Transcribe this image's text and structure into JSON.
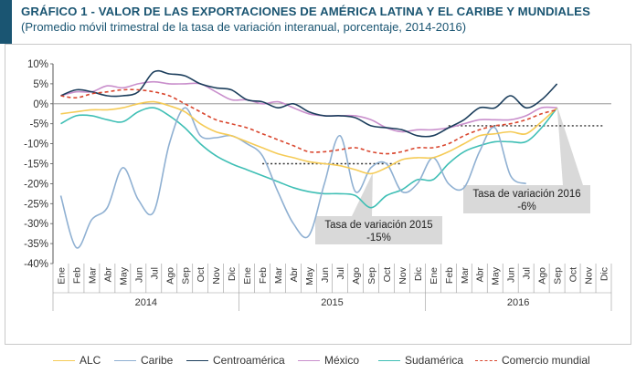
{
  "header": {
    "title": "GRÁFICO 1 - VALOR DE LAS EXPORTACIONES DE AMÉRICA LATINA Y EL CARIBE Y MUNDIALES",
    "subtitle": "(Promedio móvil trimestral de la tasa de variación interanual, porcentaje, 2014-2016)"
  },
  "chart_data": {
    "type": "line",
    "title": "GRÁFICO 1 - VALOR DE LAS EXPORTACIONES DE AMÉRICA LATINA Y EL CARIBE Y MUNDIALES",
    "ylim": [
      -40,
      10
    ],
    "yticks": [
      "10%",
      "5%",
      "0%",
      "-5%",
      "-10%",
      "-15%",
      "-20%",
      "-25%",
      "-30%",
      "-35%",
      "-40%"
    ],
    "ytick_values": [
      10,
      5,
      0,
      -5,
      -10,
      -15,
      -20,
      -25,
      -30,
      -35,
      -40
    ],
    "x": [
      "Ene",
      "Feb",
      "Mar",
      "Abr",
      "May",
      "Jun",
      "Jul",
      "Ago",
      "Sep",
      "Oct",
      "Nov",
      "Dic",
      "Ene",
      "Feb",
      "Mar",
      "Abr",
      "May",
      "Jun",
      "Jul",
      "Ago",
      "Sep",
      "Oct",
      "Nov",
      "Dic",
      "Ene",
      "Feb",
      "Mar",
      "Abr",
      "May",
      "Jun",
      "Jul",
      "Ago",
      "Sep",
      "Oct",
      "Nov",
      "Dic"
    ],
    "years": [
      "2014",
      "2015",
      "2016"
    ],
    "series": [
      {
        "name": "ALC",
        "color": "#f5cb57",
        "style": "solid",
        "values": [
          -2.5,
          -2,
          -1.5,
          -1.5,
          -1,
          0,
          0.5,
          -0.5,
          -2,
          -5,
          -7,
          -8,
          -9.5,
          -11,
          -12.5,
          -13.5,
          -14.5,
          -15,
          -15.5,
          -16.5,
          -17.5,
          -16,
          -14,
          -13.5,
          -13.5,
          -12,
          -10,
          -8,
          -7.5,
          -7,
          -7.5,
          -4.5,
          -1,
          null,
          null,
          null
        ]
      },
      {
        "name": "Caribe",
        "color": "#8fb0d2",
        "style": "solid",
        "values": [
          -23,
          -36,
          -29,
          -26,
          -16,
          -24,
          -27,
          -10,
          -1,
          -8,
          -8.5,
          -8,
          -10,
          -13,
          -22,
          -30,
          -33,
          -20,
          -8,
          -22,
          -16,
          -15,
          -22,
          -20,
          -13.5,
          -20,
          -21,
          -12,
          -6,
          -18,
          -20,
          null,
          null,
          null,
          null,
          null
        ]
      },
      {
        "name": "Centroamérica",
        "color": "#1c3e5c",
        "style": "solid",
        "values": [
          2,
          3.5,
          3,
          2,
          2,
          3,
          8,
          7.5,
          7,
          5,
          4,
          3.5,
          1,
          0.5,
          -1,
          0,
          -2,
          -3,
          -3,
          -3.5,
          -5.5,
          -6,
          -6.5,
          -8,
          -8,
          -6,
          -4,
          -1,
          -1,
          2,
          -1,
          1,
          5,
          null,
          null,
          null
        ]
      },
      {
        "name": "México",
        "color": "#c98fcc",
        "style": "solid",
        "values": [
          2,
          3,
          3,
          4.5,
          4,
          5,
          5.5,
          5,
          5,
          5,
          3,
          1,
          1,
          0,
          0.5,
          -1,
          -2.5,
          -3,
          -3,
          -3,
          -4,
          -6,
          -7,
          -6.5,
          -6.5,
          -6,
          -5,
          -4,
          -4,
          -4,
          -3,
          -1,
          -1,
          null,
          null,
          null
        ]
      },
      {
        "name": "Sudamérica",
        "color": "#3fbfb5",
        "style": "solid",
        "values": [
          -5,
          -3,
          -3,
          -4,
          -4.5,
          -2,
          -1,
          -3,
          -6,
          -10,
          -13,
          -15,
          -16.5,
          -18,
          -19.5,
          -21,
          -22,
          -22.5,
          -22.5,
          -23,
          -26,
          -23,
          -21.5,
          -19,
          -19,
          -15,
          -12,
          -10.5,
          -9.5,
          -9.5,
          -9.5,
          -6,
          -1,
          null,
          null,
          null
        ]
      },
      {
        "name": "Comercio mundial",
        "color": "#d9462e",
        "style": "dashed",
        "values": [
          2,
          1.5,
          2.5,
          3,
          3.5,
          3.5,
          3,
          2,
          0,
          -2,
          -4,
          -5,
          -6,
          -7.5,
          -9,
          -10.5,
          -12,
          -12,
          -11.5,
          -11,
          -12,
          -12.5,
          -12,
          -11,
          -11,
          -10,
          -8,
          -6.5,
          -5.5,
          -5,
          -4,
          -2.5,
          -1.5,
          null,
          null,
          null
        ]
      }
    ],
    "reference_lines": [
      {
        "value": -15,
        "from": "Feb 2015",
        "to": "Nov 2015",
        "style": "dotted",
        "color": "#333333"
      },
      {
        "value": -5.5,
        "from": "Feb 2016",
        "to": "Dic 2016",
        "style": "dotted",
        "color": "#333333"
      }
    ],
    "annotations": [
      {
        "line1": "Tasa de variación 2015",
        "line2": "-15%"
      },
      {
        "line1": "Tasa de variación 2016",
        "line2": "-6%"
      }
    ],
    "grid": false,
    "legend_position": "bottom"
  }
}
